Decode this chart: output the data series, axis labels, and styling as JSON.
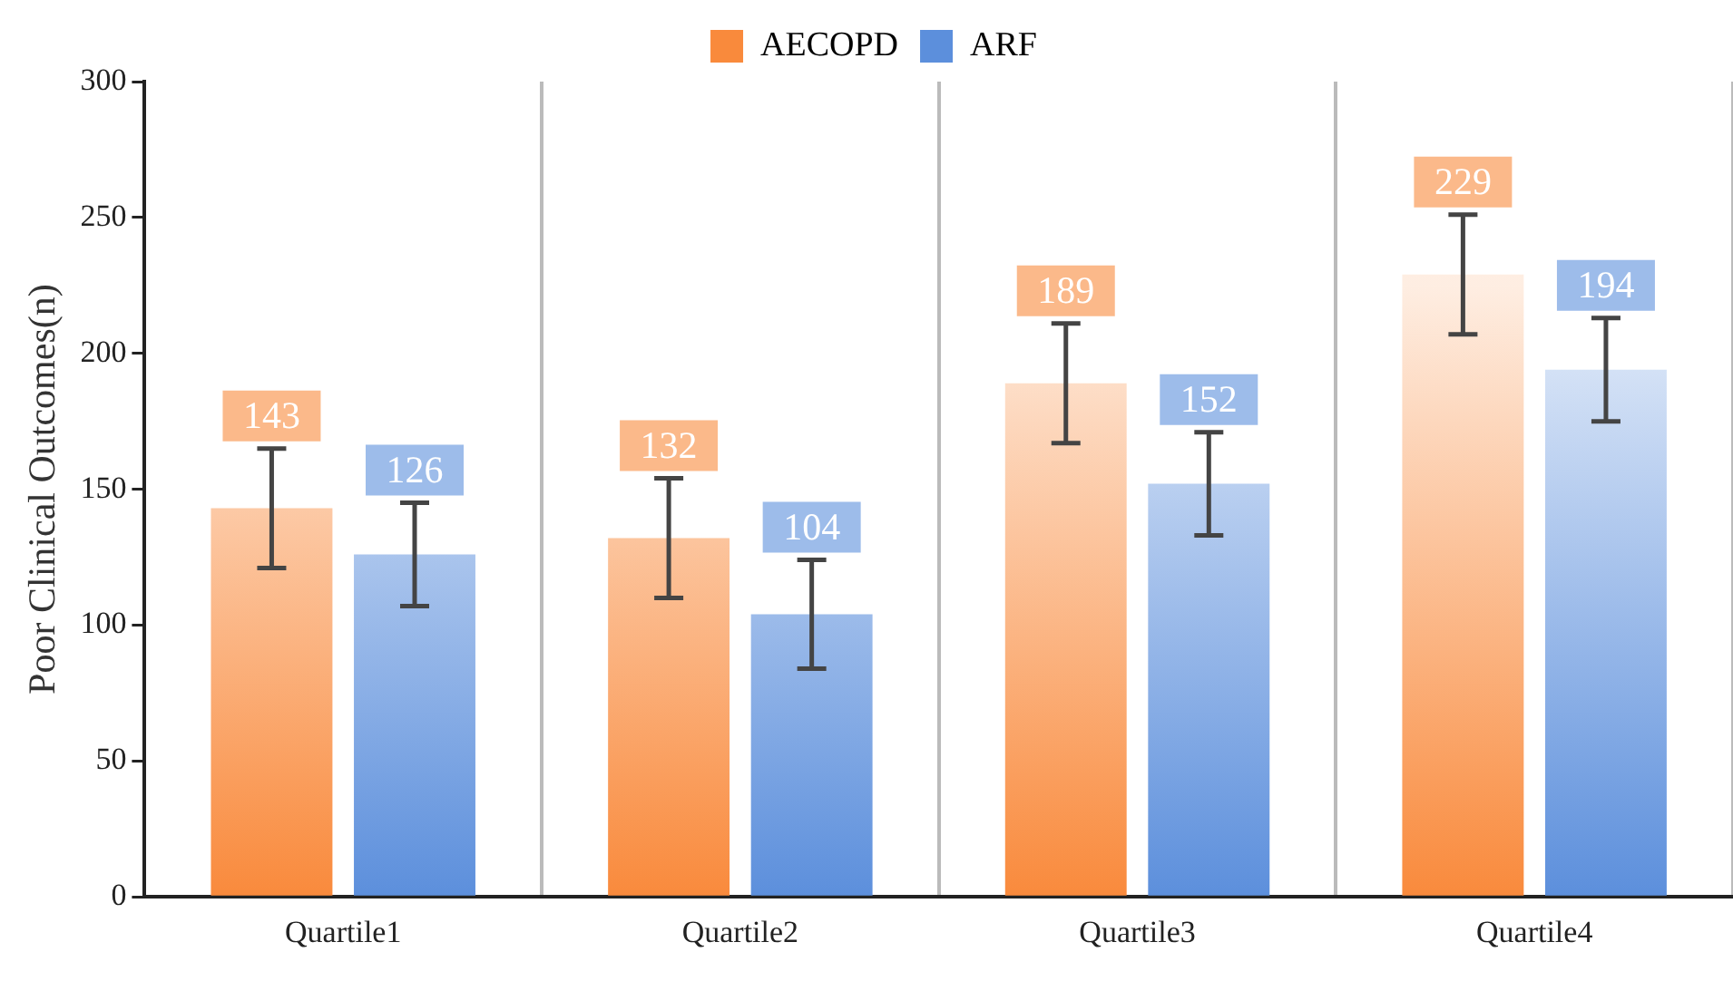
{
  "chart_data": {
    "type": "bar",
    "ylabel": "Poor Clinical Outcomes(n)",
    "categories": [
      "Quartile1",
      "Quartile2",
      "Quartile3",
      "Quartile4"
    ],
    "series": [
      {
        "name": "AECOPD",
        "color": "#f98a3c",
        "values": [
          143,
          132,
          189,
          229
        ],
        "errors": [
          22,
          22,
          22,
          22
        ]
      },
      {
        "name": "ARF",
        "color": "#5c8fdc",
        "values": [
          126,
          104,
          152,
          194
        ],
        "errors": [
          19,
          20,
          19,
          19
        ]
      }
    ],
    "ylim": [
      0,
      300
    ],
    "yticks": [
      0,
      50,
      100,
      150,
      200,
      250,
      300
    ],
    "grid": "x",
    "legend": "top",
    "data_labels": true
  }
}
